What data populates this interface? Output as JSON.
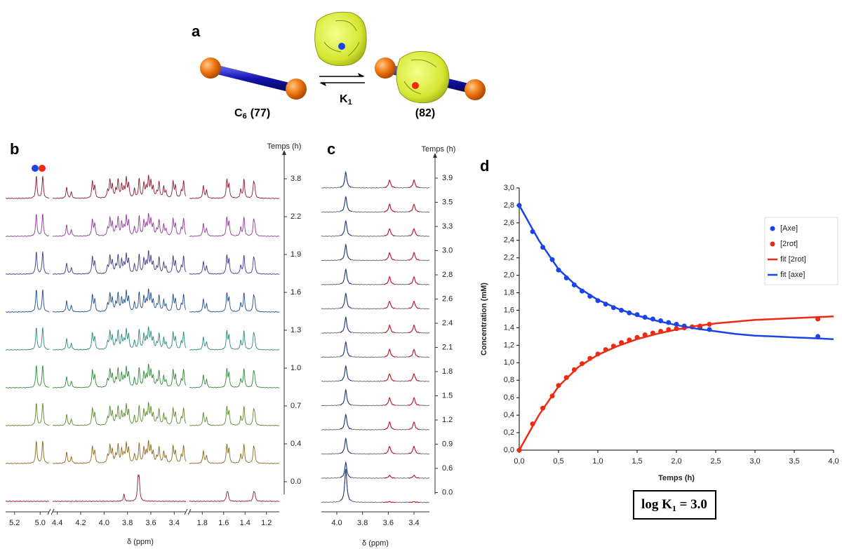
{
  "panel_a": {
    "label": "a",
    "left": {
      "name": "C",
      "sub": "6",
      "id": "(77)"
    },
    "right": {
      "id": "(82)"
    },
    "constant": {
      "name": "K",
      "sub": "1"
    }
  },
  "panel_b": {
    "label": "b",
    "time_label": "Temps (h)",
    "xlabel": "δ (ppm)",
    "times": [
      "3.8",
      "2.2",
      "1.9",
      "1.6",
      "1.3",
      "1.0",
      "0.7",
      "0.4",
      "0.0"
    ],
    "colors": [
      "#8b1a2e",
      "#8e3a98",
      "#3e3a88",
      "#1f4e8a",
      "#2a8a7c",
      "#2f8a3c",
      "#5d8a2c",
      "#8a6a1c",
      "#8b1a2e"
    ],
    "segments": [
      {
        "xlim": [
          5.27,
          4.93
        ],
        "xticks": [
          5.2,
          {
            "value": 5,
            "label": "5.0"
          }
        ]
      },
      {
        "xlim": [
          4.44,
          3.3
        ],
        "xticks": [
          4.4,
          4.2,
          {
            "value": 4,
            "label": "4.0"
          },
          3.8,
          3.6,
          3.4
        ]
      },
      {
        "xlim": [
          1.92,
          1.08
        ],
        "xticks": [
          1.8,
          1.6,
          1.4,
          1.2
        ]
      }
    ],
    "peaks": [
      5.03,
      4.98,
      4.32,
      4.28,
      4.1,
      4.08,
      3.97,
      3.95,
      3.93,
      3.9,
      3.88,
      3.85,
      3.83,
      3.81,
      3.79,
      3.74,
      3.7,
      3.66,
      3.64,
      3.62,
      3.6,
      3.58,
      3.55,
      3.53,
      3.49,
      3.47,
      3.41,
      3.39,
      3.34,
      3.32,
      1.79,
      1.76,
      1.57,
      1.55,
      1.44,
      1.41,
      1.32,
      1.31
    ],
    "bottom_peaks": [
      3.83,
      3.71,
      3.7,
      1.57,
      1.56,
      1.32,
      1.31
    ]
  },
  "panel_c": {
    "label": "c",
    "time_label": "Temps (h)",
    "xlabel": "δ (ppm)",
    "times": [
      "3.9",
      "3.5",
      "3.3",
      "3.0",
      "2.8",
      "2.6",
      "2.4",
      "2.1",
      "1.8",
      "1.5",
      "1.2",
      "0.9",
      "0.6",
      "0.0"
    ],
    "segment": {
      "xlim": [
        4.12,
        3.28
      ],
      "xticks": [
        {
          "value": 4,
          "label": "4.0"
        },
        3.8,
        3.6,
        3.4
      ]
    },
    "peaks": [
      3.93,
      3.59,
      3.4
    ],
    "colors": [
      "#1f3f80",
      "#c0182a",
      "#666666"
    ]
  },
  "chart_data": {
    "type": "line",
    "label": "d",
    "xlabel": "Temps (h)",
    "ylabel": "Concentration (mM)",
    "xlim": [
      0,
      4
    ],
    "ylim": [
      0,
      3
    ],
    "xticks": [
      {
        "value": 0,
        "label": "0,0"
      },
      {
        "value": 0.5,
        "label": "0,5"
      },
      {
        "value": 1,
        "label": "1,0"
      },
      {
        "value": 1.5,
        "label": "1,5"
      },
      {
        "value": 2,
        "label": "2,0"
      },
      {
        "value": 2.5,
        "label": "2,5"
      },
      {
        "value": 3,
        "label": "3,0"
      },
      {
        "value": 3.5,
        "label": "3,5"
      },
      {
        "value": 4,
        "label": "4,0"
      }
    ],
    "yticks": [
      {
        "value": 0,
        "label": "0,0"
      },
      {
        "value": 0.2,
        "label": "0,2"
      },
      {
        "value": 0.4,
        "label": "0,4"
      },
      {
        "value": 0.6,
        "label": "0,6"
      },
      {
        "value": 0.8,
        "label": "0,8"
      },
      {
        "value": 1,
        "label": "1,0"
      },
      {
        "value": 1.2,
        "label": "1,2"
      },
      {
        "value": 1.4,
        "label": "1,4"
      },
      {
        "value": 1.6,
        "label": "1,6"
      },
      {
        "value": 1.8,
        "label": "1,8"
      },
      {
        "value": 2,
        "label": "2,0"
      },
      {
        "value": 2.2,
        "label": "2,2"
      },
      {
        "value": 2.4,
        "label": "2,4"
      },
      {
        "value": 2.6,
        "label": "2,6"
      },
      {
        "value": 2.8,
        "label": "2,8"
      },
      {
        "value": 3,
        "label": "3,0"
      }
    ],
    "legend": "right",
    "series": [
      {
        "name": "[Axe]",
        "color": "#1a44e8",
        "style": "points",
        "x": [
          0,
          0.17,
          0.3,
          0.42,
          0.5,
          0.6,
          0.7,
          0.8,
          0.9,
          1.0,
          1.1,
          1.2,
          1.3,
          1.4,
          1.5,
          1.6,
          1.7,
          1.8,
          1.9,
          2.0,
          2.1,
          2.2,
          2.3,
          2.42,
          3.8
        ],
        "values": [
          2.8,
          2.5,
          2.32,
          2.18,
          2.06,
          1.97,
          1.89,
          1.82,
          1.76,
          1.71,
          1.67,
          1.63,
          1.6,
          1.57,
          1.55,
          1.52,
          1.5,
          1.48,
          1.46,
          1.44,
          1.42,
          1.41,
          1.4,
          1.38,
          1.3
        ]
      },
      {
        "name": "[2rot]",
        "color": "#f02a12",
        "style": "points",
        "x": [
          0,
          0.17,
          0.3,
          0.42,
          0.5,
          0.6,
          0.7,
          0.8,
          0.9,
          1.0,
          1.1,
          1.2,
          1.3,
          1.4,
          1.5,
          1.6,
          1.7,
          1.8,
          1.9,
          2.0,
          2.1,
          2.2,
          2.3,
          2.42,
          3.8
        ],
        "values": [
          0,
          0.3,
          0.48,
          0.62,
          0.74,
          0.83,
          0.92,
          0.99,
          1.05,
          1.1,
          1.15,
          1.19,
          1.23,
          1.26,
          1.29,
          1.32,
          1.34,
          1.36,
          1.38,
          1.39,
          1.4,
          1.41,
          1.42,
          1.44,
          1.5
        ]
      },
      {
        "name": "fit [2rot]",
        "color": "#f02a12",
        "style": "line",
        "x": [
          0,
          0.25,
          0.5,
          0.75,
          1,
          1.25,
          1.5,
          1.75,
          2,
          2.25,
          2.5,
          2.75,
          3,
          3.25,
          3.5,
          3.75,
          4
        ],
        "values": [
          0,
          0.4,
          0.73,
          0.95,
          1.09,
          1.19,
          1.27,
          1.33,
          1.38,
          1.42,
          1.45,
          1.47,
          1.49,
          1.5,
          1.51,
          1.52,
          1.53
        ]
      },
      {
        "name": "fit [axe]",
        "color": "#1a44e8",
        "style": "line",
        "x": [
          0,
          0.25,
          0.5,
          0.75,
          1,
          1.25,
          1.5,
          1.75,
          2,
          2.25,
          2.5,
          2.75,
          3,
          3.25,
          3.5,
          3.75,
          4
        ],
        "values": [
          2.8,
          2.4,
          2.07,
          1.86,
          1.72,
          1.62,
          1.54,
          1.48,
          1.43,
          1.39,
          1.36,
          1.33,
          1.31,
          1.3,
          1.29,
          1.28,
          1.27
        ]
      }
    ],
    "annotation": {
      "text": "log K",
      "sub": "1",
      "tail": " = 3.0"
    }
  }
}
